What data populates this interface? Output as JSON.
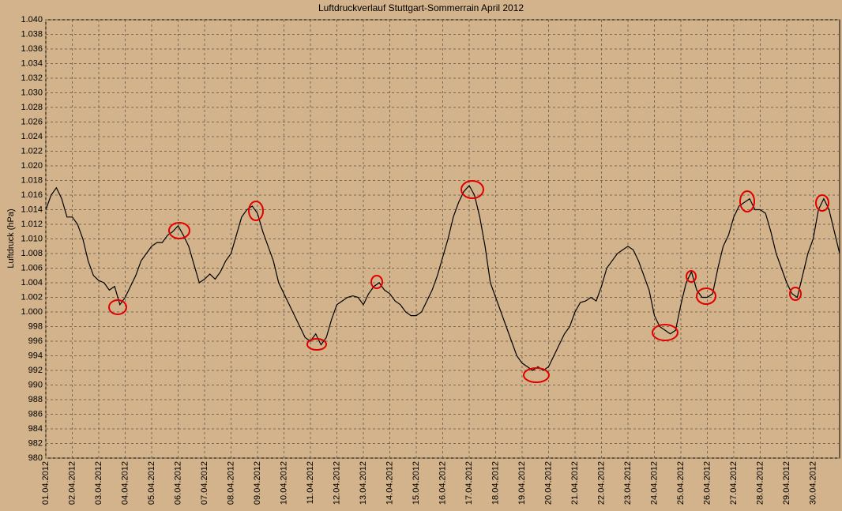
{
  "chart_data": {
    "type": "line",
    "title": "Luftdruckverlauf Stuttgart-Sommerrain April 2012",
    "y_label": "Luftdruck (hPa)",
    "x": [
      1,
      1.2,
      1.4,
      1.6,
      1.8,
      2,
      2.2,
      2.4,
      2.6,
      2.8,
      3,
      3.2,
      3.4,
      3.6,
      3.8,
      4,
      4.2,
      4.4,
      4.6,
      4.8,
      5,
      5.2,
      5.4,
      5.6,
      5.8,
      6,
      6.2,
      6.4,
      6.6,
      6.8,
      7,
      7.2,
      7.4,
      7.6,
      7.8,
      8,
      8.2,
      8.4,
      8.6,
      8.8,
      9,
      9.2,
      9.4,
      9.6,
      9.8,
      10,
      10.2,
      10.4,
      10.6,
      10.8,
      11,
      11.2,
      11.4,
      11.6,
      11.8,
      12,
      12.2,
      12.4,
      12.6,
      12.8,
      13,
      13.2,
      13.4,
      13.6,
      13.8,
      14,
      14.2,
      14.4,
      14.6,
      14.8,
      15,
      15.2,
      15.4,
      15.6,
      15.8,
      16,
      16.2,
      16.4,
      16.6,
      16.8,
      17,
      17.2,
      17.4,
      17.6,
      17.8,
      18,
      18.2,
      18.4,
      18.6,
      18.8,
      19,
      19.2,
      19.4,
      19.6,
      19.8,
      20,
      20.2,
      20.4,
      20.6,
      20.8,
      21,
      21.2,
      21.4,
      21.6,
      21.8,
      22,
      22.2,
      22.4,
      22.6,
      22.8,
      23,
      23.2,
      23.4,
      23.6,
      23.8,
      24,
      24.2,
      24.4,
      24.6,
      24.8,
      25,
      25.2,
      25.4,
      25.6,
      25.8,
      26,
      26.2,
      26.4,
      26.6,
      26.8,
      27,
      27.2,
      27.4,
      27.6,
      27.8,
      28,
      28.2,
      28.4,
      28.6,
      28.8,
      29,
      29.2,
      29.4,
      29.6,
      29.8,
      30,
      30.2,
      30.4,
      30.6,
      30.8,
      31
    ],
    "values": [
      1014,
      1016,
      1017,
      1015.5,
      1013,
      1013,
      1012,
      1010,
      1007,
      1005,
      1004.3,
      1004,
      1003,
      1003.5,
      1001,
      1002,
      1003.5,
      1005,
      1007,
      1008,
      1009,
      1009.5,
      1009.5,
      1010.5,
      1011,
      1011.8,
      1010.5,
      1009,
      1006.5,
      1004,
      1004.5,
      1005.2,
      1004.5,
      1005.5,
      1007,
      1008,
      1010.5,
      1013,
      1014,
      1014.5,
      1013.5,
      1011,
      1009,
      1007,
      1004,
      1002.5,
      1001,
      999.5,
      998,
      996.5,
      996,
      997,
      995.5,
      996.5,
      999,
      1001,
      1001.5,
      1002,
      1002.2,
      1002,
      1001,
      1002.5,
      1003.5,
      1004,
      1003,
      1002.5,
      1001.5,
      1001,
      1000,
      999.5,
      999.5,
      1000,
      1001.5,
      1003,
      1005,
      1007.5,
      1010,
      1013,
      1015,
      1016.5,
      1017.3,
      1016,
      1013,
      1009,
      1004,
      1002,
      1000,
      998,
      996,
      994,
      993,
      992.5,
      992,
      992.5,
      992,
      992.5,
      994,
      995.5,
      997,
      998,
      1000,
      1001.3,
      1001.5,
      1002,
      1001.5,
      1003.5,
      1006,
      1007,
      1008,
      1008.5,
      1009,
      1008.5,
      1007,
      1005,
      1003,
      999.5,
      998,
      997.5,
      997,
      997.5,
      1001,
      1004,
      1005.5,
      1003,
      1002,
      1002,
      1002.5,
      1006,
      1009,
      1010.5,
      1013,
      1014.5,
      1015,
      1015.5,
      1014,
      1014,
      1013.5,
      1011,
      1008,
      1006,
      1004,
      1002.5,
      1002,
      1005,
      1008,
      1010,
      1014,
      1015.5,
      1014,
      1011,
      1008
    ],
    "color": "#000000",
    "xlim": [
      1,
      31
    ],
    "xticks": [
      {
        "value": 1,
        "label": "01.04.2012"
      },
      {
        "value": 2,
        "label": "02.04.2012"
      },
      {
        "value": 3,
        "label": "03.04.2012"
      },
      {
        "value": 4,
        "label": "04.04.2012"
      },
      {
        "value": 5,
        "label": "05.04.2012"
      },
      {
        "value": 6,
        "label": "06.04.2012"
      },
      {
        "value": 7,
        "label": "07.04.2012"
      },
      {
        "value": 8,
        "label": "08.04.2012"
      },
      {
        "value": 9,
        "label": "09.04.2012"
      },
      {
        "value": 10,
        "label": "10.04.2012"
      },
      {
        "value": 11,
        "label": "11.04.2012"
      },
      {
        "value": 12,
        "label": "12.04.2012"
      },
      {
        "value": 13,
        "label": "13.04.2012"
      },
      {
        "value": 14,
        "label": "14.04.2012"
      },
      {
        "value": 15,
        "label": "15.04.2012"
      },
      {
        "value": 16,
        "label": "16.04.2012"
      },
      {
        "value": 17,
        "label": "17.04.2012"
      },
      {
        "value": 18,
        "label": "18.04.2012"
      },
      {
        "value": 19,
        "label": "19.04.2012"
      },
      {
        "value": 20,
        "label": "20.04.2012"
      },
      {
        "value": 21,
        "label": "21.04.2012"
      },
      {
        "value": 22,
        "label": "22.04.2012"
      },
      {
        "value": 23,
        "label": "23.04.2012"
      },
      {
        "value": 24,
        "label": "24.04.2012"
      },
      {
        "value": 25,
        "label": "25.04.2012"
      },
      {
        "value": 26,
        "label": "26.04.2012"
      },
      {
        "value": 27,
        "label": "27.04.2012"
      },
      {
        "value": 28,
        "label": "28.04.2012"
      },
      {
        "value": 29,
        "label": "29.04.2012"
      },
      {
        "value": 30,
        "label": "30.04.2012"
      }
    ],
    "ylim": [
      980,
      1040
    ],
    "yticks": [
      980,
      982,
      984,
      986,
      988,
      990,
      992,
      994,
      996,
      998,
      {
        "value": 1000,
        "label": "1.000"
      },
      {
        "value": 1002,
        "label": "1.002"
      },
      {
        "value": 1004,
        "label": "1.004"
      },
      {
        "value": 1006,
        "label": "1.006"
      },
      {
        "value": 1008,
        "label": "1.008"
      },
      {
        "value": 1010,
        "label": "1.010"
      },
      {
        "value": 1012,
        "label": "1.012"
      },
      {
        "value": 1014,
        "label": "1.014"
      },
      {
        "value": 1016,
        "label": "1.016"
      },
      {
        "value": 1018,
        "label": "1.018"
      },
      {
        "value": 1020,
        "label": "1.020"
      },
      {
        "value": 1022,
        "label": "1.022"
      },
      {
        "value": 1024,
        "label": "1.024"
      },
      {
        "value": 1026,
        "label": "1.026"
      },
      {
        "value": 1028,
        "label": "1.028"
      },
      {
        "value": 1030,
        "label": "1.030"
      },
      {
        "value": 1032,
        "label": "1.032"
      },
      {
        "value": 1034,
        "label": "1.034"
      },
      {
        "value": 1036,
        "label": "1.036"
      },
      {
        "value": 1038,
        "label": "1.038"
      },
      {
        "value": 1040,
        "label": "1.040"
      }
    ],
    "grid": true
  }
}
